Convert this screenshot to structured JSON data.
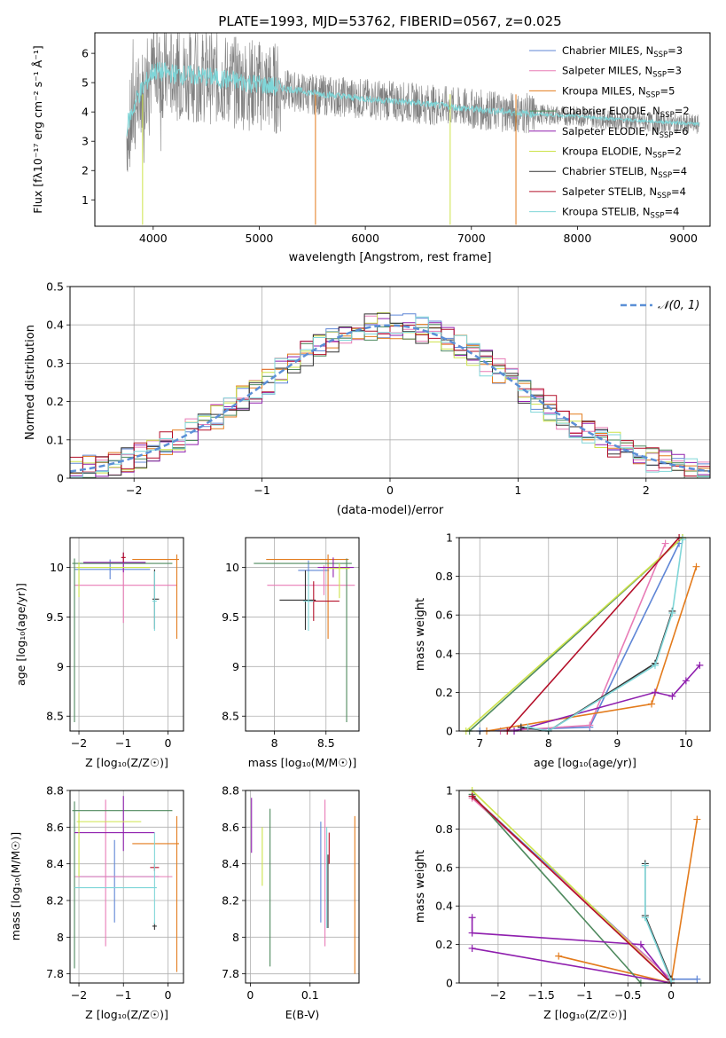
{
  "figure": {
    "title": "PLATE=1993, MJD=53762, FIBERID=0567, z=0.025",
    "models": [
      {
        "name": "Chabrier MILES",
        "nssp": "3",
        "color": "#5f86d6"
      },
      {
        "name": "Salpeter MILES",
        "nssp": "3",
        "color": "#e87bb6"
      },
      {
        "name": "Kroupa MILES",
        "nssp": "5",
        "color": "#e37b1c"
      },
      {
        "name": "Chabrier ELODIE",
        "nssp": "2",
        "color": "#4f8a5e"
      },
      {
        "name": "Salpeter ELODIE",
        "nssp": "6",
        "color": "#8f1fae"
      },
      {
        "name": "Kroupa ELODIE",
        "nssp": "2",
        "color": "#cde34a"
      },
      {
        "name": "Chabrier STELIB",
        "nssp": "4",
        "color": "#333333"
      },
      {
        "name": "Salpeter STELIB",
        "nssp": "4",
        "color": "#b4102a"
      },
      {
        "name": "Kroupa STELIB",
        "nssp": "4",
        "color": "#7fd6d8"
      }
    ]
  },
  "chart_data": [
    {
      "id": "spectrum",
      "type": "line",
      "xlabel": "wavelength [Angstrom, rest frame]",
      "ylabel": "Flux [fλ10⁻¹⁷ erg cm⁻² s⁻¹ Å⁻¹]",
      "xlim": [
        3450,
        9250
      ],
      "ylim": [
        0.1,
        6.7
      ],
      "xticks": [
        4000,
        5000,
        6000,
        7000,
        8000,
        9000
      ],
      "yticks": [
        1,
        2,
        3,
        4,
        5,
        6
      ],
      "x_range_data": [
        3750,
        9150
      ],
      "series": [
        {
          "name": "data",
          "color": "#808080",
          "values": [
            [
              3750,
              3.2
            ],
            [
              3850,
              4.4
            ],
            [
              4000,
              5.3
            ],
            [
              4200,
              5.3
            ],
            [
              4500,
              5.2
            ],
            [
              4800,
              5.0
            ],
            [
              5000,
              4.9
            ],
            [
              5500,
              4.6
            ],
            [
              6000,
              4.45
            ],
            [
              6500,
              4.3
            ],
            [
              7000,
              4.1
            ],
            [
              7500,
              3.95
            ],
            [
              8000,
              3.85
            ],
            [
              8500,
              3.7
            ],
            [
              9000,
              3.6
            ],
            [
              9150,
              3.55
            ]
          ]
        },
        {
          "name": "model",
          "color": "#7fd6d8",
          "values": [
            [
              3750,
              3.5
            ],
            [
              3850,
              4.5
            ],
            [
              4000,
              5.4
            ],
            [
              4200,
              5.3
            ],
            [
              4500,
              5.2
            ],
            [
              4800,
              5.05
            ],
            [
              5000,
              4.95
            ],
            [
              5500,
              4.65
            ],
            [
              6000,
              4.45
            ],
            [
              6500,
              4.3
            ],
            [
              7000,
              4.1
            ],
            [
              7500,
              3.95
            ],
            [
              8000,
              3.85
            ],
            [
              8500,
              3.72
            ],
            [
              9000,
              3.62
            ],
            [
              9150,
              3.58
            ]
          ]
        }
      ]
    },
    {
      "id": "residuals",
      "type": "line",
      "xlabel": "(data-model)/error",
      "ylabel": "Normed distribution",
      "xlim": [
        -2.5,
        2.5
      ],
      "ylim": [
        0,
        0.5
      ],
      "xticks": [
        -2,
        -1,
        0,
        1,
        2
      ],
      "yticks": [
        0.0,
        0.1,
        0.2,
        0.3,
        0.4,
        0.5
      ],
      "legend": "𝒩(0, 1)",
      "gaussian": {
        "mu": 0,
        "sigma": 1
      }
    },
    {
      "id": "age_vs_Z",
      "type": "scatter",
      "xlabel": "Z [log₁₀(Z/Z☉)]",
      "ylabel": "age  [log₁₀(age/yr)]",
      "xlim": [
        -2.2,
        0.35
      ],
      "ylim": [
        8.35,
        10.3
      ],
      "xticks": [
        -2,
        -1,
        0
      ],
      "yticks": [
        8.5,
        9.0,
        9.5,
        10.0
      ],
      "points": [
        {
          "model": 0,
          "x": -1.3,
          "y": 9.98,
          "xerr": [
            0.8,
            0.9
          ],
          "yerr": [
            0.1,
            0.1
          ]
        },
        {
          "model": 1,
          "x": -1.0,
          "y": 9.82,
          "xerr": [
            1.1,
            1.2
          ],
          "yerr": [
            0.38,
            0.2
          ]
        },
        {
          "model": 2,
          "x": 0.2,
          "y": 10.08,
          "xerr": [
            1.0,
            0.05
          ],
          "yerr": [
            0.8,
            0.05
          ]
        },
        {
          "model": 3,
          "x": -2.1,
          "y": 10.04,
          "xerr": [
            0.05,
            2.2
          ],
          "yerr": [
            1.6,
            0.05
          ]
        },
        {
          "model": 4,
          "x": -1.0,
          "y": 10.05,
          "xerr": [
            0.9,
            0.5
          ],
          "yerr": [
            0.1,
            0.1
          ]
        },
        {
          "model": 5,
          "x": -2.0,
          "y": 10.0,
          "xerr": [
            0.05,
            1.6
          ],
          "yerr": [
            0.3,
            0.05
          ]
        },
        {
          "model": 6,
          "x": -0.3,
          "y": 9.68,
          "xerr": [
            0.05,
            0.1
          ],
          "yerr": [
            0.3,
            0.3
          ]
        },
        {
          "model": 7,
          "x": -1.0,
          "y": 10.1,
          "xerr": [
            0.05,
            0.05
          ],
          "yerr": [
            0.05,
            0.05
          ]
        },
        {
          "model": 8,
          "x": -0.3,
          "y": 9.66,
          "xerr": [
            0.05,
            0.05
          ],
          "yerr": [
            0.3,
            0.3
          ]
        }
      ]
    },
    {
      "id": "age_vs_mass",
      "type": "scatter",
      "xlabel": "mass [log₁₀(M/M☉)]",
      "ylabel": "",
      "xlim": [
        7.72,
        8.82
      ],
      "ylim": [
        8.35,
        10.3
      ],
      "xticks": [
        8.0,
        8.5
      ],
      "yticks": [
        8.5,
        9.0,
        9.5,
        10.0
      ],
      "points": [
        {
          "model": 0,
          "x": 8.33,
          "y": 9.97,
          "xerr": [
            0.1,
            0.2
          ],
          "yerr": [
            0.1,
            0.1
          ]
        },
        {
          "model": 1,
          "x": 8.48,
          "y": 9.82,
          "xerr": [
            0.55,
            0.3
          ],
          "yerr": [
            0.1,
            0.2
          ]
        },
        {
          "model": 2,
          "x": 8.52,
          "y": 10.08,
          "xerr": [
            0.6,
            0.2
          ],
          "yerr": [
            0.8,
            0.05
          ]
        },
        {
          "model": 3,
          "x": 8.7,
          "y": 10.04,
          "xerr": [
            0.9,
            0.05
          ],
          "yerr": [
            1.6,
            0.05
          ]
        },
        {
          "model": 4,
          "x": 8.57,
          "y": 10.0,
          "xerr": [
            0.15,
            0.2
          ],
          "yerr": [
            0.1,
            0.1
          ]
        },
        {
          "model": 5,
          "x": 8.63,
          "y": 9.99,
          "xerr": [
            0.1,
            0.1
          ],
          "yerr": [
            0.3,
            0.05
          ]
        },
        {
          "model": 6,
          "x": 8.3,
          "y": 9.67,
          "xerr": [
            0.25,
            0.1
          ],
          "yerr": [
            0.3,
            0.3
          ]
        },
        {
          "model": 7,
          "x": 8.38,
          "y": 9.66,
          "xerr": [
            0.05,
            0.25
          ],
          "yerr": [
            0.2,
            0.2
          ]
        },
        {
          "model": 8,
          "x": 8.33,
          "y": 9.66,
          "xerr": [
            0.05,
            0.05
          ],
          "yerr": [
            0.3,
            0.3
          ]
        }
      ]
    },
    {
      "id": "massweight_vs_age",
      "type": "line",
      "xlabel": "age  [log₁₀(age/yr)]",
      "ylabel": "mass weight",
      "xlim": [
        6.7,
        10.35
      ],
      "ylim": [
        0,
        1.0
      ],
      "xticks": [
        7,
        8,
        9,
        10
      ],
      "yticks": [
        0.0,
        0.2,
        0.4,
        0.6,
        0.8,
        1.0
      ],
      "series": [
        {
          "model": 0,
          "values": [
            [
              7.0,
              0.0
            ],
            [
              8.6,
              0.02
            ],
            [
              9.9,
              0.97
            ]
          ]
        },
        {
          "model": 1,
          "values": [
            [
              7.3,
              0.0
            ],
            [
              8.6,
              0.03
            ],
            [
              9.7,
              0.97
            ]
          ]
        },
        {
          "model": 2,
          "values": [
            [
              7.1,
              0.0
            ],
            [
              9.5,
              0.14
            ],
            [
              10.15,
              0.85
            ]
          ]
        },
        {
          "model": 3,
          "values": [
            [
              6.85,
              0.0
            ],
            [
              9.95,
              1.0
            ]
          ]
        },
        {
          "model": 4,
          "values": [
            [
              7.5,
              0.0
            ],
            [
              9.55,
              0.2
            ],
            [
              9.8,
              0.18
            ],
            [
              10.0,
              0.26
            ],
            [
              10.2,
              0.34
            ]
          ]
        },
        {
          "model": 5,
          "values": [
            [
              6.8,
              0.0
            ],
            [
              9.95,
              1.0
            ]
          ]
        },
        {
          "model": 6,
          "values": [
            [
              7.6,
              0.02
            ],
            [
              8.0,
              0.0
            ],
            [
              9.55,
              0.35
            ],
            [
              9.8,
              0.62
            ]
          ]
        },
        {
          "model": 7,
          "values": [
            [
              7.4,
              0.0
            ],
            [
              9.9,
              1.0
            ]
          ]
        },
        {
          "model": 8,
          "values": [
            [
              7.7,
              0.02
            ],
            [
              8.0,
              0.0
            ],
            [
              9.55,
              0.34
            ],
            [
              9.8,
              0.61
            ],
            [
              9.95,
              0.99
            ]
          ]
        }
      ]
    },
    {
      "id": "mass_vs_Z",
      "type": "scatter",
      "xlabel": "Z [log₁₀(Z/Z☉)]",
      "ylabel": "mass [log₁₀(M/M☉)]",
      "xlim": [
        -2.2,
        0.35
      ],
      "ylim": [
        7.75,
        8.8
      ],
      "xticks": [
        -2,
        -1,
        0
      ],
      "yticks": [
        7.8,
        8.0,
        8.2,
        8.4,
        8.6,
        8.8
      ],
      "points": [
        {
          "model": 0,
          "x": -1.2,
          "y": 8.33,
          "xerr": [
            0.8,
            1.0
          ],
          "yerr": [
            0.25,
            0.2
          ]
        },
        {
          "model": 1,
          "x": -1.4,
          "y": 8.33,
          "xerr": [
            0.7,
            1.5
          ],
          "yerr": [
            0.38,
            0.42
          ]
        },
        {
          "model": 2,
          "x": 0.2,
          "y": 8.51,
          "xerr": [
            1.0,
            0.05
          ],
          "yerr": [
            0.7,
            0.15
          ]
        },
        {
          "model": 3,
          "x": -2.1,
          "y": 8.69,
          "xerr": [
            0.05,
            2.2
          ],
          "yerr": [
            0.86,
            0.05
          ]
        },
        {
          "model": 4,
          "x": -1.0,
          "y": 8.57,
          "xerr": [
            1.1,
            0.7
          ],
          "yerr": [
            0.1,
            0.2
          ]
        },
        {
          "model": 5,
          "x": -2.0,
          "y": 8.63,
          "xerr": [
            0.05,
            1.4
          ],
          "yerr": [
            0.3,
            0.05
          ]
        },
        {
          "model": 6,
          "x": -0.3,
          "y": 8.06,
          "xerr": [
            0.05,
            0.05
          ],
          "yerr": [
            0.02,
            0.02
          ]
        },
        {
          "model": 7,
          "x": -0.3,
          "y": 8.38,
          "xerr": [
            0.1,
            0.1
          ],
          "yerr": [
            0.02,
            0.02
          ]
        },
        {
          "model": 8,
          "x": -0.3,
          "y": 8.27,
          "xerr": [
            1.8,
            0.05
          ],
          "yerr": [
            0.2,
            0.3
          ]
        }
      ]
    },
    {
      "id": "mass_vs_ebv",
      "type": "scatter",
      "xlabel": "E(B-V)",
      "ylabel": "",
      "xlim": [
        -0.008,
        0.182
      ],
      "ylim": [
        7.75,
        8.8
      ],
      "xticks": [
        0.0,
        0.1
      ],
      "yticks": [
        7.8,
        8.0,
        8.2,
        8.4,
        8.6,
        8.8
      ],
      "points": [
        {
          "model": 0,
          "x": 0.118,
          "y": 8.33,
          "xerr": [
            0,
            0
          ],
          "yerr": [
            0.25,
            0.3
          ]
        },
        {
          "model": 1,
          "x": 0.125,
          "y": 8.33,
          "xerr": [
            0,
            0
          ],
          "yerr": [
            0.38,
            0.42
          ]
        },
        {
          "model": 2,
          "x": 0.175,
          "y": 8.3,
          "xerr": [
            0,
            0
          ],
          "yerr": [
            0.5,
            0.36
          ]
        },
        {
          "model": 3,
          "x": 0.033,
          "y": 8.3,
          "xerr": [
            0,
            0
          ],
          "yerr": [
            0.46,
            0.4
          ]
        },
        {
          "model": 4,
          "x": 0.002,
          "y": 8.6,
          "xerr": [
            0,
            0
          ],
          "yerr": [
            0.14,
            0.16
          ]
        },
        {
          "model": 5,
          "x": 0.02,
          "y": 8.45,
          "xerr": [
            0,
            0
          ],
          "yerr": [
            0.17,
            0.15
          ]
        },
        {
          "model": 6,
          "x": 0.13,
          "y": 8.25,
          "xerr": [
            0,
            0
          ],
          "yerr": [
            0.2,
            0.2
          ]
        },
        {
          "model": 7,
          "x": 0.132,
          "y": 8.45,
          "xerr": [
            0,
            0
          ],
          "yerr": [
            0.05,
            0.12
          ]
        },
        {
          "model": 8,
          "x": 0.128,
          "y": 8.3,
          "xerr": [
            0,
            0
          ],
          "yerr": [
            0.25,
            0.3
          ]
        }
      ]
    },
    {
      "id": "massweight_vs_Z",
      "type": "line",
      "xlabel": "Z [log₁₀(Z/Z☉)]",
      "ylabel": "mass weight",
      "xlim": [
        -2.45,
        0.45
      ],
      "ylim": [
        0,
        1.0
      ],
      "xticks": [
        -2.0,
        -1.5,
        -1.0,
        -0.5,
        0.0
      ],
      "yticks": [
        0.0,
        0.2,
        0.4,
        0.6,
        0.8,
        1.0
      ],
      "series": [
        {
          "model": 0,
          "values": [
            [
              -2.3,
              0.97
            ],
            [
              0.0,
              0.02
            ],
            [
              0.3,
              0.02
            ]
          ]
        },
        {
          "model": 1,
          "values": [
            [
              -2.3,
              0.96
            ],
            [
              0.0,
              0.02
            ],
            [
              0.0,
              0.0
            ]
          ]
        },
        {
          "model": 2,
          "values": [
            [
              -1.3,
              0.14
            ],
            [
              0.0,
              0.0
            ],
            [
              0.3,
              0.85
            ]
          ]
        },
        {
          "model": 3,
          "values": [
            [
              -2.3,
              0.98
            ],
            [
              -0.35,
              0.0
            ]
          ]
        },
        {
          "model": 4,
          "values": [
            [
              -2.3,
              0.34
            ],
            [
              -2.3,
              0.26
            ],
            [
              -0.35,
              0.2
            ],
            [
              0.0,
              0.0
            ],
            [
              -2.3,
              0.18
            ]
          ]
        },
        {
          "model": 5,
          "values": [
            [
              -2.3,
              1.0
            ],
            [
              0.0,
              0.0
            ]
          ]
        },
        {
          "model": 6,
          "values": [
            [
              -0.3,
              0.62
            ],
            [
              -0.3,
              0.35
            ],
            [
              0.0,
              0.02
            ]
          ]
        },
        {
          "model": 7,
          "values": [
            [
              -2.3,
              0.97
            ],
            [
              0.0,
              0.0
            ]
          ]
        },
        {
          "model": 8,
          "values": [
            [
              -0.3,
              0.61
            ],
            [
              -0.3,
              0.34
            ],
            [
              0.0,
              0.01
            ],
            [
              0.0,
              0.0
            ]
          ]
        }
      ]
    }
  ]
}
